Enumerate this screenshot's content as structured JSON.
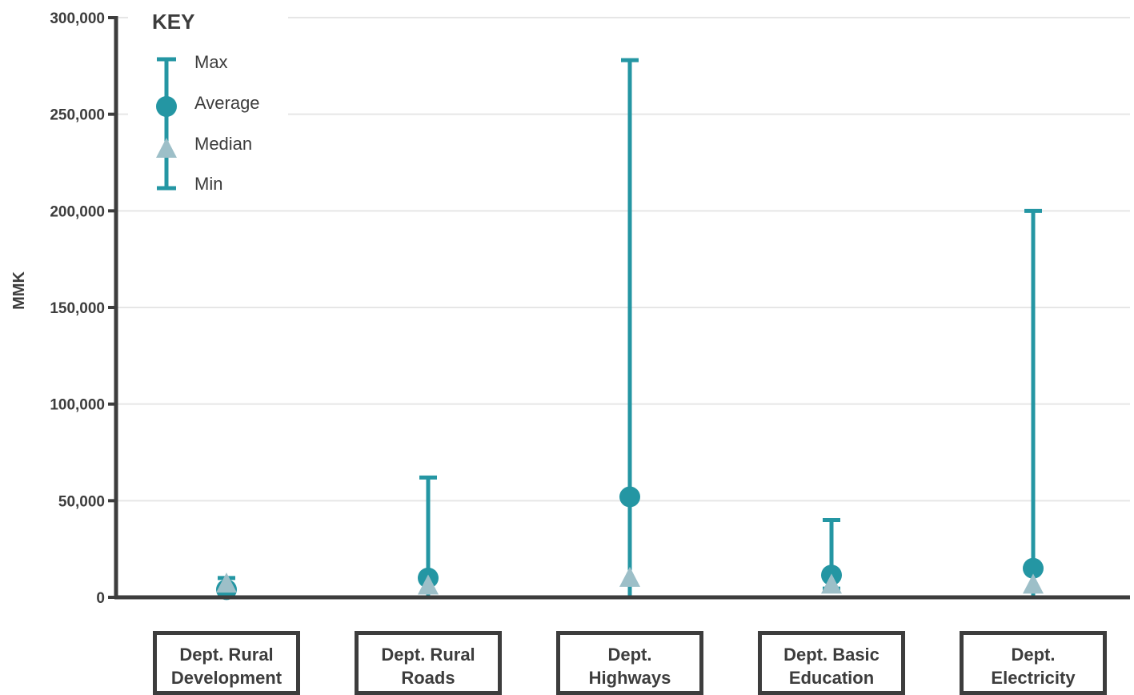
{
  "chart_data": {
    "type": "range",
    "ylabel": "MMK",
    "ylim": [
      0,
      300000
    ],
    "yticks": [
      0,
      50000,
      100000,
      150000,
      200000,
      250000,
      300000
    ],
    "ytick_labels": [
      "0",
      "50,000",
      "100,000",
      "150,000",
      "200,000",
      "250,000",
      "300,000"
    ],
    "grid": true,
    "categories": [
      "Dept. Rural\nDevelopment",
      "Dept. Rural\nRoads",
      "Dept.\nHighways",
      "Dept. Basic\nEducation",
      "Dept.\nElectricity"
    ],
    "series": [
      {
        "name": "Max",
        "values": [
          10000,
          62000,
          278000,
          40000,
          200000
        ]
      },
      {
        "name": "Average",
        "values": [
          4000,
          10000,
          52000,
          11500,
          15000
        ]
      },
      {
        "name": "Median",
        "values": [
          7000,
          6000,
          10000,
          6500,
          6500
        ]
      },
      {
        "name": "Min",
        "values": [
          4000,
          0,
          0,
          4500,
          0
        ]
      }
    ],
    "legend": {
      "title": "KEY",
      "placement": "top-left",
      "entries": [
        "Max",
        "Average",
        "Median",
        "Min"
      ]
    },
    "colors": {
      "range": "#2496a3",
      "average": "#2496a3",
      "median": "#9dbfc8",
      "axis": "#3d3d3d",
      "grid": "#e6e6e6"
    }
  }
}
